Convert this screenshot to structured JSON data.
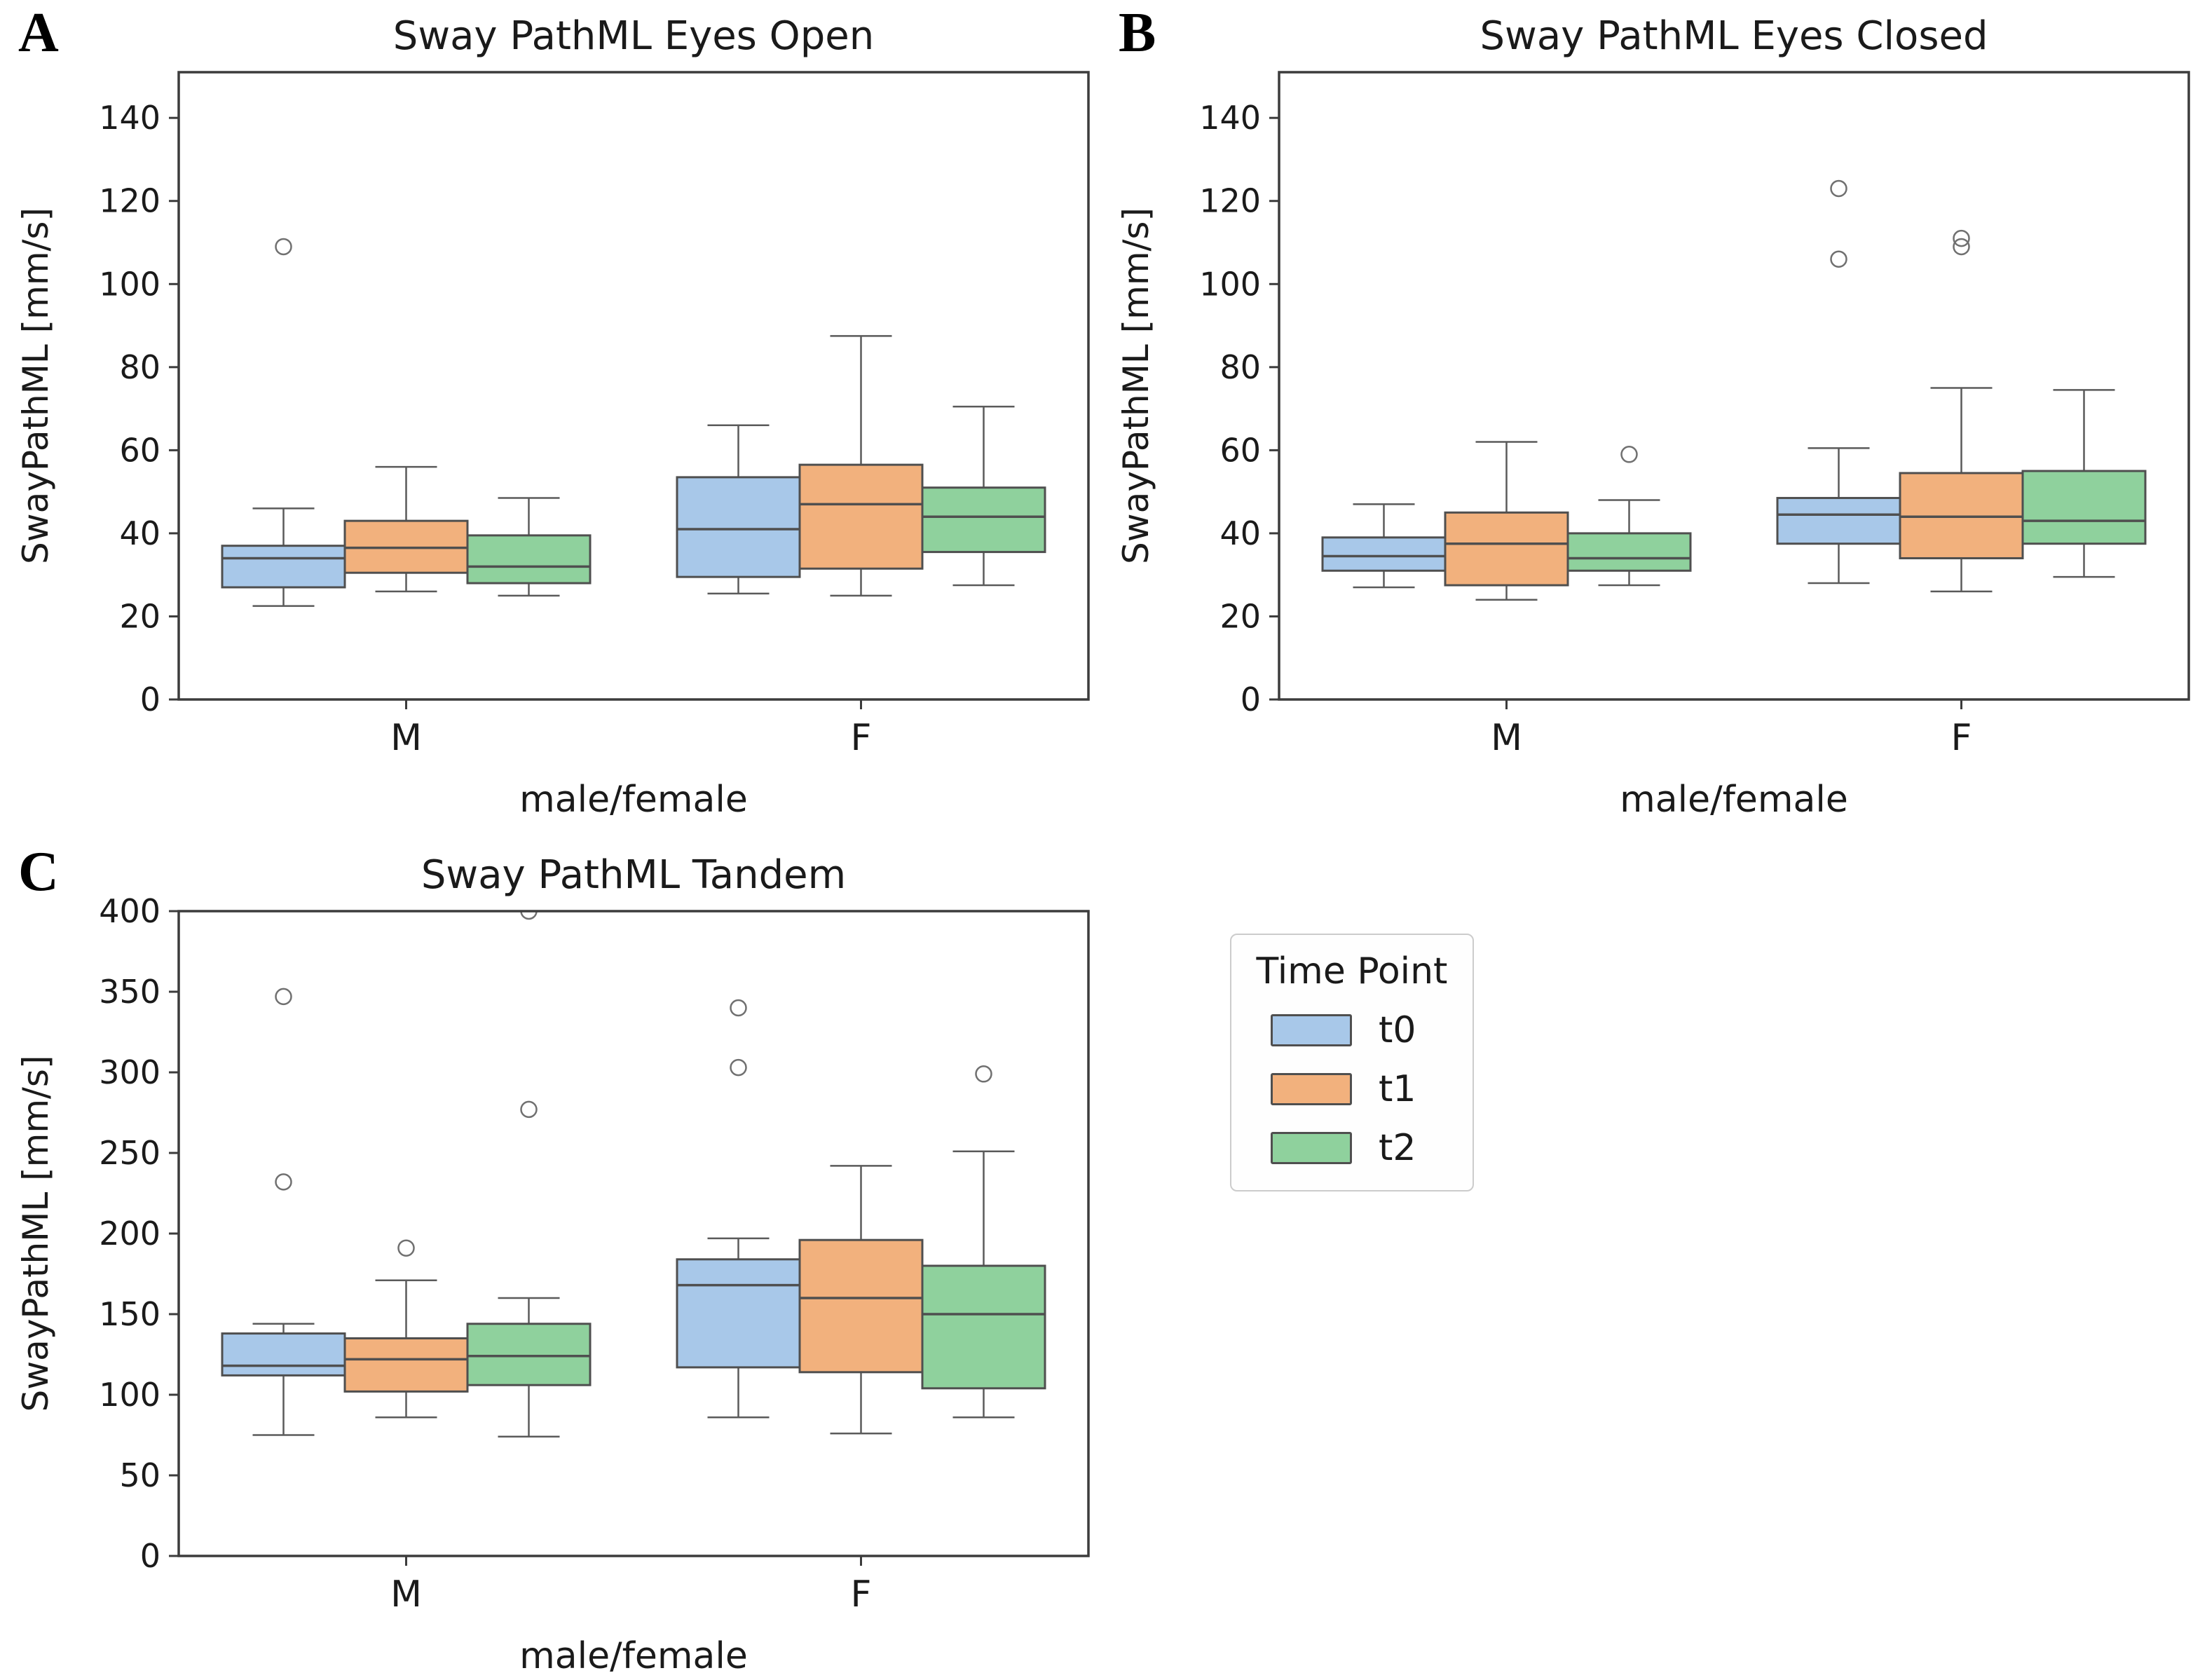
{
  "figure": {
    "panels": [
      {
        "letter": "A"
      },
      {
        "letter": "B"
      },
      {
        "letter": "C"
      }
    ],
    "legend": {
      "title": "Time Point",
      "items": [
        {
          "label": "t0",
          "color": "#a8c8e9"
        },
        {
          "label": "t1",
          "color": "#f2b17d"
        },
        {
          "label": "t2",
          "color": "#8fd19d"
        }
      ]
    },
    "style": {
      "spine_color": "#3c3c3c",
      "box_edge_color": "#4f4f4f",
      "whisker_color": "#5a5a5a",
      "outlier_color": "#707070",
      "text_color": "#1a1a1a"
    }
  },
  "chart_data": [
    {
      "type": "boxplot",
      "panel": "A",
      "title": "Sway PathML Eyes Open",
      "xlabel": "male/female",
      "ylabel": "SwayPathML [mm/s]",
      "categories": [
        "M",
        "F"
      ],
      "ylim": [
        0,
        151
      ],
      "yticks": [
        0,
        20,
        40,
        60,
        80,
        100,
        120,
        140
      ],
      "legend_position": "none",
      "grid": false,
      "series": [
        {
          "name": "t0",
          "color": "#a8c8e9",
          "boxes": [
            {
              "whislo": 22.5,
              "q1": 27,
              "med": 34,
              "q3": 37,
              "whishi": 46,
              "fliers": [
                109
              ]
            },
            {
              "whislo": 25.5,
              "q1": 29.5,
              "med": 41,
              "q3": 53.5,
              "whishi": 66,
              "fliers": []
            }
          ]
        },
        {
          "name": "t1",
          "color": "#f2b17d",
          "boxes": [
            {
              "whislo": 26,
              "q1": 30.5,
              "med": 36.5,
              "q3": 43,
              "whishi": 56,
              "fliers": []
            },
            {
              "whislo": 25,
              "q1": 31.5,
              "med": 47,
              "q3": 56.5,
              "whishi": 87.5,
              "fliers": []
            }
          ]
        },
        {
          "name": "t2",
          "color": "#8fd19d",
          "boxes": [
            {
              "whislo": 25,
              "q1": 28,
              "med": 32,
              "q3": 39.5,
              "whishi": 48.5,
              "fliers": []
            },
            {
              "whislo": 27.5,
              "q1": 35.5,
              "med": 44,
              "q3": 51,
              "whishi": 70.5,
              "fliers": []
            }
          ]
        }
      ]
    },
    {
      "type": "boxplot",
      "panel": "B",
      "title": "Sway PathML Eyes Closed",
      "xlabel": "male/female",
      "ylabel": "SwayPathML [mm/s]",
      "categories": [
        "M",
        "F"
      ],
      "ylim": [
        0,
        151
      ],
      "yticks": [
        0,
        20,
        40,
        60,
        80,
        100,
        120,
        140
      ],
      "legend_position": "none",
      "grid": false,
      "series": [
        {
          "name": "t0",
          "color": "#a8c8e9",
          "boxes": [
            {
              "whislo": 27,
              "q1": 31,
              "med": 34.5,
              "q3": 39,
              "whishi": 47,
              "fliers": []
            },
            {
              "whislo": 28,
              "q1": 37.5,
              "med": 44.5,
              "q3": 48.5,
              "whishi": 60.5,
              "fliers": [
                106,
                123
              ]
            }
          ]
        },
        {
          "name": "t1",
          "color": "#f2b17d",
          "boxes": [
            {
              "whislo": 24,
              "q1": 27.5,
              "med": 37.5,
              "q3": 45,
              "whishi": 62,
              "fliers": []
            },
            {
              "whislo": 26,
              "q1": 34,
              "med": 44,
              "q3": 54.5,
              "whishi": 75,
              "fliers": [
                109,
                111
              ]
            }
          ]
        },
        {
          "name": "t2",
          "color": "#8fd19d",
          "boxes": [
            {
              "whislo": 27.5,
              "q1": 31,
              "med": 34,
              "q3": 40,
              "whishi": 48,
              "fliers": [
                59
              ]
            },
            {
              "whislo": 29.5,
              "q1": 37.5,
              "med": 43,
              "q3": 55,
              "whishi": 74.5,
              "fliers": []
            }
          ]
        }
      ]
    },
    {
      "type": "boxplot",
      "panel": "C",
      "title": "Sway PathML Tandem",
      "xlabel": "male/female",
      "ylabel": "SwayPathML [mm/s]",
      "categories": [
        "M",
        "F"
      ],
      "ylim": [
        0,
        400
      ],
      "yticks": [
        0,
        50,
        100,
        150,
        200,
        250,
        300,
        350,
        400
      ],
      "legend_position": "none",
      "grid": false,
      "series": [
        {
          "name": "t0",
          "color": "#a8c8e9",
          "boxes": [
            {
              "whislo": 75,
              "q1": 112,
              "med": 118,
              "q3": 138,
              "whishi": 144,
              "fliers": [
                232,
                347
              ]
            },
            {
              "whislo": 86,
              "q1": 117,
              "med": 168,
              "q3": 184,
              "whishi": 197,
              "fliers": [
                303,
                340
              ]
            }
          ]
        },
        {
          "name": "t1",
          "color": "#f2b17d",
          "boxes": [
            {
              "whislo": 86,
              "q1": 102,
              "med": 122,
              "q3": 135,
              "whishi": 171,
              "fliers": [
                191
              ]
            },
            {
              "whislo": 76,
              "q1": 114,
              "med": 160,
              "q3": 196,
              "whishi": 242,
              "fliers": []
            }
          ]
        },
        {
          "name": "t2",
          "color": "#8fd19d",
          "boxes": [
            {
              "whislo": 74,
              "q1": 106,
              "med": 124,
              "q3": 144,
              "whishi": 160,
              "fliers": [
                277,
                400
              ]
            },
            {
              "whislo": 86,
              "q1": 104,
              "med": 150,
              "q3": 180,
              "whishi": 251,
              "fliers": [
                299
              ]
            }
          ]
        }
      ]
    }
  ]
}
